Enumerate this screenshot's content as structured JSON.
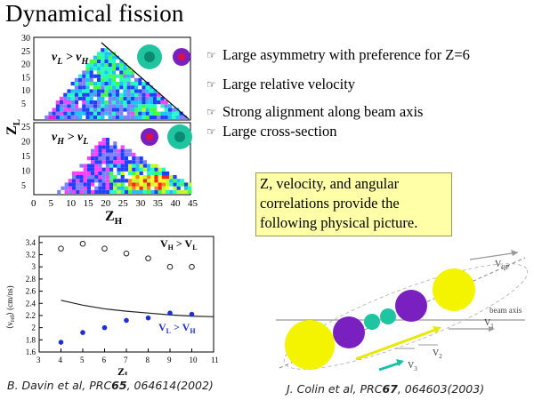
{
  "title": "Dynamical fission",
  "bullets": [
    "Large asymmetry with preference for Z=6",
    "Large relative velocity",
    "Strong alignment along beam axis",
    "Large cross-section"
  ],
  "bullet_icon": "pointing-hand-icon",
  "callout": "Z, velocity, and angular correlations provide the following physical picture.",
  "colors": {
    "callout_bg": "#ffffa8",
    "fragment_yellow": "#f4f400",
    "fragment_purple": "#7a1fc0",
    "fragment_teal": "#1fc4a0",
    "arrow_teal": "#19c0a8",
    "blue_points": "#1c2fd0"
  },
  "maps": {
    "top_label_html": [
      "v",
      "L",
      " > v",
      "H"
    ],
    "bottom_label_html": [
      "v",
      "H",
      " > v",
      "L"
    ],
    "y_label": "Z",
    "y_label_sub": "L",
    "x_label": "Z",
    "x_label_sub": "H",
    "x_ticks": [
      "0",
      "5",
      "10",
      "15",
      "20",
      "25",
      "30",
      "35",
      "40",
      "45"
    ],
    "y_ticks_top": [
      "30",
      "25",
      "20",
      "15",
      "10",
      "5"
    ],
    "y_ticks_bottom": [
      "25",
      "20",
      "15",
      "10",
      "5"
    ]
  },
  "chart_data": {
    "type": "scatter",
    "xlabel": "Z",
    "xlabel_sub": "L",
    "ylabel": "⟨v",
    "ylabel_sub": "rel",
    "ylabel_unit": "⟩ (cm/ns)",
    "xlim": [
      3,
      11
    ],
    "ylim": [
      1.6,
      3.5
    ],
    "x_ticks": [
      3,
      4,
      5,
      6,
      7,
      8,
      9,
      10,
      11
    ],
    "y_ticks": [
      1.6,
      1.8,
      2,
      2.2,
      2.4,
      2.6,
      2.8,
      3,
      3.2,
      3.4
    ],
    "y_tick_labels": [
      "1.6",
      "1.8",
      "2",
      "2.2",
      "2.4",
      "2.6",
      "2.8",
      "3",
      "3.2",
      "3.4"
    ],
    "series": [
      {
        "name": "V_H > V_L",
        "label_main": "V",
        "label_sub1": "H",
        "label_mid": " > V",
        "label_sub2": "L",
        "marker": "open-circle",
        "x": [
          4,
          5,
          6,
          7,
          8,
          9,
          10
        ],
        "y": [
          3.3,
          3.38,
          3.3,
          3.22,
          3.14,
          3.0,
          3.0
        ]
      },
      {
        "name": "V_L > V_H",
        "label_main": "V",
        "label_sub1": "L",
        "label_mid": " > V",
        "label_sub2": "H",
        "marker": "filled-circle",
        "x": [
          4,
          5,
          6,
          7,
          8,
          9,
          10
        ],
        "y": [
          1.76,
          1.92,
          2.0,
          2.12,
          2.16,
          2.24,
          2.22
        ]
      },
      {
        "name": "",
        "marker": "line",
        "x": [
          4,
          5,
          6,
          7,
          8,
          9,
          10,
          11
        ],
        "y": [
          2.45,
          2.37,
          2.31,
          2.27,
          2.24,
          2.21,
          2.19,
          2.18
        ]
      }
    ]
  },
  "refs": {
    "left_pre": "B. Davin et al, PRC",
    "left_vol": "65",
    "left_post": ", 064614(2002)",
    "right_pre": "J. Colin et al, PRC",
    "right_vol": "67",
    "right_post": ", 064603(2003)"
  },
  "diagram": {
    "v_qp": "V",
    "v_qp_sub": "QP",
    "beam_axis": "beam axis",
    "v1": "V",
    "v1_sub": "1",
    "v2": "V",
    "v2_sub": "2",
    "v3": "V",
    "v3_sub": "3"
  }
}
